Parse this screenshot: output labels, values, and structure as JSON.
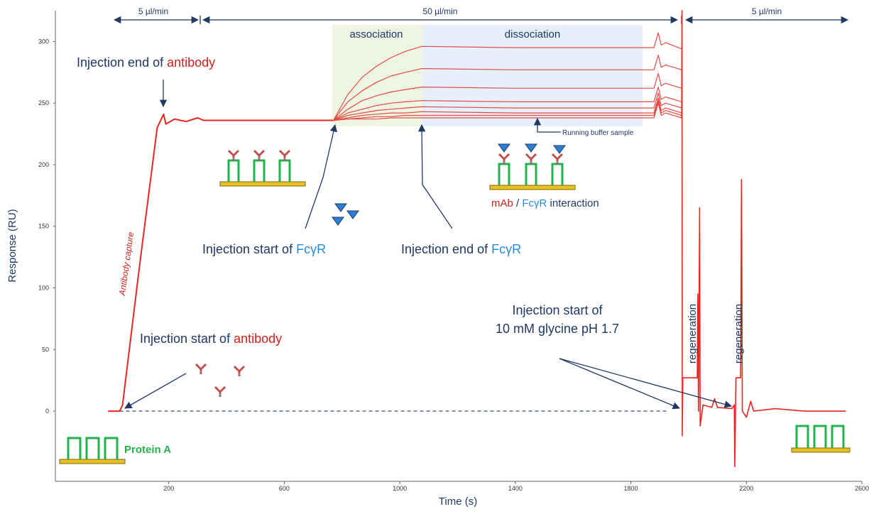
{
  "chart_data": {
    "type": "line",
    "xlabel": "Time (s)",
    "ylabel": "Response (RU)",
    "xlim": [
      -200,
      2600
    ],
    "ylim": [
      -57,
      325
    ],
    "xticks": [
      200,
      600,
      1000,
      1400,
      1800,
      2200,
      2600
    ],
    "yticks": [
      0,
      50,
      100,
      150,
      200,
      250,
      300
    ],
    "series": [
      {
        "color": "#e8251f",
        "width": 2,
        "x": [
          -10,
          30,
          40,
          100,
          160,
          182,
          190,
          220,
          260,
          300,
          320,
          500,
          770
        ],
        "values": [
          0,
          0,
          5,
          120,
          230,
          241,
          233,
          237,
          235,
          238,
          236,
          236,
          236
        ]
      },
      {
        "color": "#e34a44",
        "width": 1.2,
        "x": [
          770,
          820,
          870,
          920,
          970,
          1020,
          1076,
          1400,
          1880,
          1895,
          1905,
          1920,
          1976
        ],
        "values": [
          236,
          257,
          271,
          280,
          287,
          292,
          296,
          295,
          295,
          307,
          297,
          299,
          294
        ]
      },
      {
        "color": "#e34a44",
        "width": 1.2,
        "x": [
          770,
          820,
          870,
          920,
          970,
          1020,
          1076,
          1400,
          1880,
          1895,
          1905,
          1920,
          1976
        ],
        "values": [
          236,
          251,
          260,
          267,
          272,
          275,
          278,
          277,
          277,
          289,
          279,
          281,
          277
        ]
      },
      {
        "color": "#e34a44",
        "width": 1.2,
        "x": [
          770,
          820,
          870,
          920,
          970,
          1020,
          1076,
          1400,
          1880,
          1895,
          1905,
          1920,
          1976
        ],
        "values": [
          236,
          245,
          252,
          256,
          259,
          261,
          263,
          262,
          262,
          274,
          264,
          266,
          262
        ]
      },
      {
        "color": "#e34a44",
        "width": 1.2,
        "x": [
          770,
          820,
          870,
          920,
          970,
          1020,
          1076,
          1400,
          1880,
          1895,
          1905,
          1920,
          1976
        ],
        "values": [
          236,
          242,
          245,
          248,
          250,
          251,
          252,
          251,
          251,
          263,
          253,
          255,
          251
        ]
      },
      {
        "color": "#e34a44",
        "width": 1.2,
        "x": [
          770,
          820,
          870,
          920,
          970,
          1020,
          1076,
          1400,
          1880,
          1895,
          1905,
          1920,
          1976
        ],
        "values": [
          236,
          240,
          242,
          244,
          245,
          246,
          247,
          246,
          246,
          258,
          248,
          250,
          246
        ]
      },
      {
        "color": "#e34a44",
        "width": 1.2,
        "x": [
          770,
          820,
          870,
          920,
          970,
          1020,
          1076,
          1400,
          1880,
          1895,
          1905,
          1920,
          1976
        ],
        "values": [
          236,
          238,
          240,
          241,
          242,
          242,
          243,
          242,
          242,
          254,
          244,
          246,
          242
        ]
      },
      {
        "color": "#e34a44",
        "width": 1.2,
        "x": [
          770,
          820,
          870,
          920,
          970,
          1020,
          1076,
          1400,
          1880,
          1895,
          1905,
          1920,
          1976
        ],
        "values": [
          236,
          237,
          238,
          239,
          239,
          240,
          240,
          240,
          240,
          252,
          242,
          244,
          240
        ]
      },
      {
        "color": "#e34a44",
        "width": 1.2,
        "x": [
          770,
          820,
          870,
          920,
          970,
          1020,
          1076,
          1400,
          1880,
          1895,
          1905,
          1920,
          1976
        ],
        "values": [
          236,
          237,
          237,
          237,
          238,
          238,
          238,
          238,
          238,
          250,
          240,
          242,
          238
        ]
      },
      {
        "color": "#e8251f",
        "width": 1.6,
        "x": [
          1976,
          1977,
          1978,
          1980,
          2030,
          2032,
          2034,
          2038,
          2040,
          2050,
          2080,
          2090,
          2100,
          2150,
          2158,
          2160,
          2164,
          2180,
          2183,
          2186,
          2200,
          2215,
          2225,
          2300,
          2400,
          2544
        ],
        "values": [
          238,
          325,
          -20,
          27,
          27,
          95,
          0,
          165,
          -12,
          5,
          3,
          10,
          3,
          2,
          5,
          -45,
          27,
          27,
          188,
          0,
          -5,
          8,
          0,
          2,
          0,
          0
        ]
      }
    ],
    "annotations": {
      "flow_rates": [
        "5 µl/min",
        "50 µl/min",
        "5 µl/min"
      ],
      "phases": [
        "association",
        "dissociation"
      ],
      "injection_end_antibody": [
        "Injection end of ",
        "antibody"
      ],
      "injection_start_fcgr": [
        "Injection start of ",
        "FcγR"
      ],
      "injection_end_fcgr": [
        "Injection end of ",
        "FcγR"
      ],
      "injection_start_antibody": [
        "Injection start of ",
        "antibody"
      ],
      "injection_start_glycine": [
        "Injection start of",
        "10 mM glycine pH 1.7"
      ],
      "running_buffer": "Running buffer sample",
      "antibody_capture": "Antibody capture",
      "regeneration": [
        "regeneration",
        "regeneration"
      ],
      "interaction": [
        "mAb",
        " / ",
        "FcγR",
        " interaction"
      ],
      "protein_a": "Protein A"
    }
  }
}
